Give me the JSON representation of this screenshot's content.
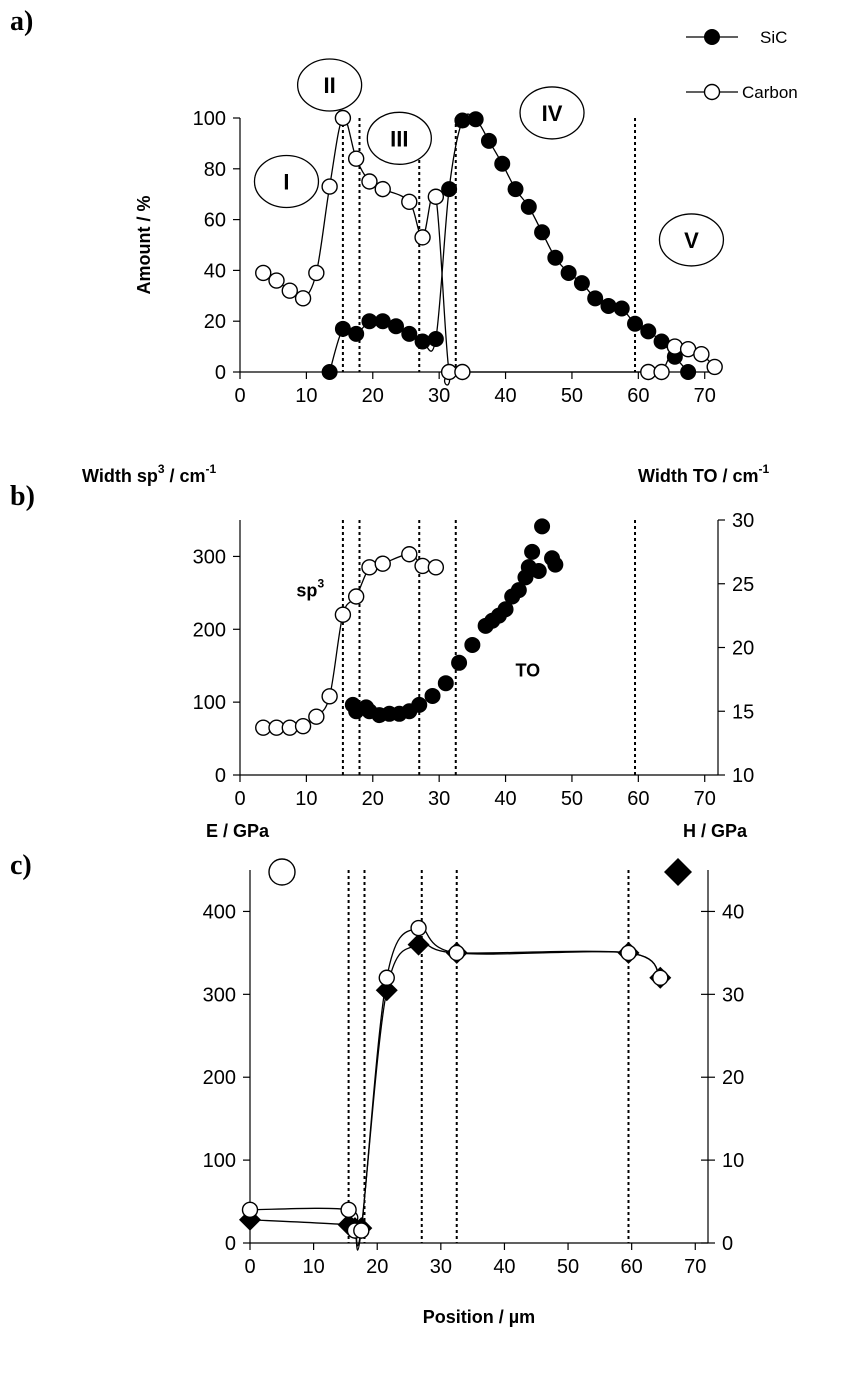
{
  "chart_data": [
    {
      "panel": "a)",
      "type": "line",
      "ylabel": "Amount / %",
      "xlim": [
        0,
        72
      ],
      "ylim": [
        0,
        100
      ],
      "xticks": [
        0,
        10,
        20,
        30,
        40,
        50,
        60,
        70
      ],
      "yticks": [
        0,
        20,
        40,
        60,
        80,
        100
      ],
      "dashed_lines_x": [
        15.5,
        18,
        27,
        32.5,
        59.5
      ],
      "regions": [
        {
          "label": "I",
          "x": 7,
          "y": 75
        },
        {
          "label": "II",
          "x": 13.5,
          "y": 113
        },
        {
          "label": "III",
          "x": 24,
          "y": 92
        },
        {
          "label": "IV",
          "x": 47,
          "y": 102
        },
        {
          "label": "V",
          "x": 68,
          "y": 52
        }
      ],
      "legend": [
        "SiC",
        "Carbon"
      ],
      "legend_position": "top-right",
      "series": [
        {
          "name": "SiC",
          "marker": "filled-circle",
          "x": [
            13.5,
            15.5,
            17.5,
            19.5,
            21.5,
            23.5,
            25.5,
            27.5,
            29.5,
            31.5,
            33.5,
            35.5,
            37.5,
            39.5,
            41.5,
            43.5,
            45.5,
            47.5,
            49.5,
            51.5,
            53.5,
            55.5,
            57.5,
            59.5,
            61.5,
            63.5,
            65.5,
            67.5
          ],
          "y": [
            0,
            17,
            15,
            20,
            20,
            18,
            15,
            12,
            13,
            72,
            99,
            99.5,
            91,
            82,
            72,
            65,
            55,
            45,
            39,
            35,
            29,
            26,
            25,
            19,
            16,
            12,
            6,
            0
          ]
        },
        {
          "name": "Carbon",
          "marker": "open-circle",
          "x": [
            3.5,
            5.5,
            7.5,
            9.5,
            11.5,
            13.5,
            15.5,
            17.5,
            19.5,
            21.5,
            25.5,
            27.5,
            29.5,
            31.5,
            33.5,
            61.5,
            63.5,
            65.5,
            67.5,
            69.5,
            71.5
          ],
          "y": [
            39,
            36,
            32,
            29,
            39,
            73,
            100,
            84,
            75,
            72,
            67,
            53,
            69,
            0,
            0,
            0,
            0,
            10,
            9,
            7,
            2
          ]
        }
      ]
    },
    {
      "panel": "b)",
      "type": "scatter",
      "ylabel_left_main": "Width sp",
      "ylabel_left_sup": "3",
      "ylabel_left_unit": " / cm",
      "ylabel_left_unit_sup": "-1",
      "ylabel_right_main": "Width TO / cm",
      "ylabel_right_sup": "-1",
      "xlim": [
        0,
        72
      ],
      "ylim_left": [
        0,
        350
      ],
      "ylim_right": [
        10,
        30
      ],
      "xticks": [
        0,
        10,
        20,
        30,
        40,
        50,
        60,
        70
      ],
      "yticks_left": [
        0,
        100,
        200,
        300
      ],
      "yticks_right": [
        10,
        15,
        20,
        25,
        30
      ],
      "dashed_lines_x": [
        15.5,
        18,
        27,
        32.5,
        59.5
      ],
      "annotations": [
        {
          "main": "sp",
          "sup": "3",
          "x": 8.5,
          "y": 245
        },
        {
          "main": "TO",
          "sup": "",
          "x": 41.5,
          "y": 135
        }
      ],
      "series": [
        {
          "name": "sp3",
          "axis": "left",
          "marker": "open-circle",
          "x": [
            3.5,
            5.5,
            7.5,
            9.5,
            11.5,
            13.5,
            15.5,
            17.5,
            19.5,
            21.5,
            25.5,
            27.5,
            29.5
          ],
          "y": [
            65,
            65,
            65,
            67,
            80,
            108,
            220,
            245,
            285,
            290,
            303,
            287,
            285
          ]
        },
        {
          "name": "TO",
          "axis": "right",
          "marker": "filled-circle",
          "x": [
            17,
            17.5,
            19,
            19.5,
            21,
            22.5,
            24,
            25.5,
            27,
            29,
            31,
            33,
            35,
            37,
            38,
            39,
            40,
            41,
            42,
            43,
            43.5,
            44,
            45,
            45.5,
            47,
            47.5
          ],
          "y": [
            15.5,
            15,
            15.3,
            15,
            14.7,
            14.8,
            14.8,
            15,
            15.5,
            16.2,
            17.2,
            18.8,
            20.2,
            21.7,
            22.1,
            22.5,
            23,
            24,
            24.5,
            25.5,
            26.3,
            27.5,
            26,
            29.5,
            27,
            26.5
          ]
        }
      ]
    },
    {
      "panel": "c)",
      "type": "line",
      "ylabel_left": "E / GPa",
      "ylabel_right": "H / GPa",
      "xlabel": "Position / µm",
      "xlim": [
        0,
        72
      ],
      "ylim_left": [
        0,
        450
      ],
      "ylim_right": [
        0,
        45
      ],
      "xticks": [
        0,
        10,
        20,
        30,
        40,
        50,
        60,
        70
      ],
      "yticks_left": [
        0,
        100,
        200,
        300,
        400
      ],
      "yticks_right": [
        0,
        10,
        20,
        30,
        40
      ],
      "dashed_lines_x": [
        15.5,
        18,
        27,
        32.5,
        59.5
      ],
      "series": [
        {
          "name": "E",
          "axis": "left",
          "marker": "open-circle",
          "x": [
            0,
            15.5,
            16.5,
            17.5,
            21.5,
            26.5,
            32.5,
            59.5,
            64.5
          ],
          "y": [
            40,
            40,
            15,
            15,
            320,
            380,
            350,
            350,
            320
          ]
        },
        {
          "name": "H",
          "axis": "right",
          "marker": "filled-diamond",
          "x": [
            0,
            15.5,
            16.5,
            17.5,
            21.5,
            26.5,
            32.5,
            59.5,
            64.5
          ],
          "y": [
            2.8,
            2.2,
            1.8,
            1.8,
            30.5,
            36,
            35,
            35,
            32
          ]
        }
      ]
    }
  ]
}
